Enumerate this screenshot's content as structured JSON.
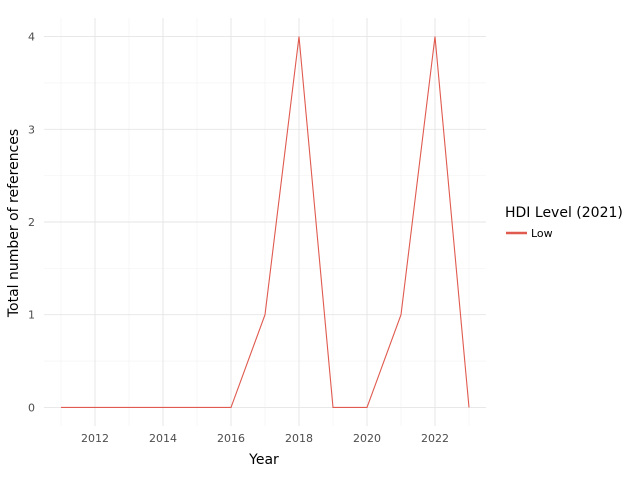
{
  "chart_data": {
    "type": "line",
    "xlabel": "Year",
    "ylabel": "Total number of references",
    "xlim": [
      2010.5,
      2023.5
    ],
    "ylim": [
      -0.2,
      4.2
    ],
    "x_ticks": [
      2012,
      2014,
      2016,
      2018,
      2020,
      2022
    ],
    "y_ticks": [
      0,
      1,
      2,
      3,
      4
    ],
    "grid": true,
    "legend": {
      "title": "HDI Level (2021)",
      "placement": "right"
    },
    "series": [
      {
        "name": "Low",
        "color": "#e05a4f",
        "x": [
          2011,
          2012,
          2013,
          2014,
          2015,
          2016,
          2017,
          2018,
          2019,
          2020,
          2021,
          2022,
          2023
        ],
        "y": [
          0,
          0,
          0,
          0,
          0,
          0,
          1,
          4,
          0,
          0,
          1,
          4,
          0
        ]
      }
    ]
  }
}
